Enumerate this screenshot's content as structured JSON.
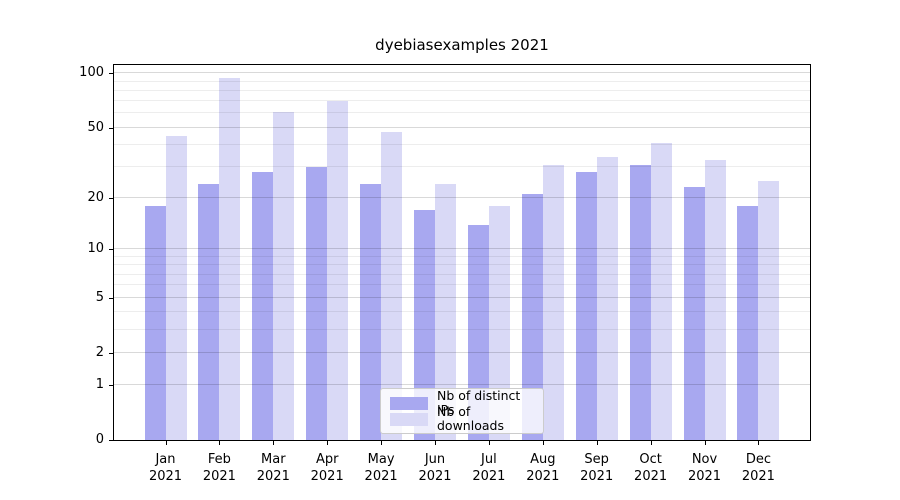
{
  "chart_data": {
    "type": "bar",
    "title": "dyebiasexamples 2021",
    "categories": [
      "Jan",
      "Feb",
      "Mar",
      "Apr",
      "May",
      "Jun",
      "Jul",
      "Aug",
      "Sep",
      "Oct",
      "Nov",
      "Dec"
    ],
    "year": "2021",
    "series": [
      {
        "name": "Nb of distinct IPs",
        "color": "#a8a8f0",
        "values": [
          18,
          24,
          28,
          30,
          24,
          17,
          14,
          21,
          28,
          31,
          23,
          18
        ]
      },
      {
        "name": "Nb of downloads",
        "color": "#d9d9f6",
        "values": [
          45,
          94,
          61,
          70,
          47,
          24,
          18,
          31,
          34,
          41,
          33,
          25
        ]
      }
    ],
    "yscale": "log1p",
    "y_ticks_major": [
      0,
      1,
      2,
      5,
      10,
      20,
      50,
      100
    ],
    "y_ticks_minor": [
      3,
      4,
      6,
      7,
      8,
      9,
      30,
      40,
      60,
      70,
      80,
      90
    ],
    "ylim": [
      0,
      115
    ],
    "grid": true,
    "legend_position": "lower-center-inside",
    "colors": {
      "axis": "#000000",
      "grid_major": "rgba(0,0,0,0.15)",
      "grid_minor": "rgba(0,0,0,0.07)",
      "background": "#ffffff"
    }
  }
}
